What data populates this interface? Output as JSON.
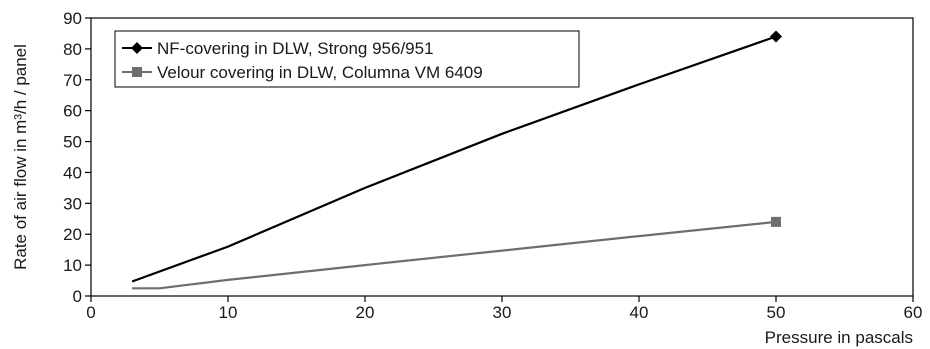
{
  "chart_data": {
    "type": "line",
    "xlabel": "Pressure in pascals",
    "ylabel": "Rate of air flow in m³/h / panel",
    "xlim": [
      0,
      60
    ],
    "ylim": [
      0,
      90
    ],
    "xticks": [
      0,
      10,
      20,
      30,
      40,
      50,
      60
    ],
    "yticks": [
      0,
      10,
      20,
      30,
      40,
      50,
      60,
      70,
      80,
      90
    ],
    "grid": false,
    "legend_position": "top-left",
    "series": [
      {
        "name": "NF-covering in DLW, Strong 956/951",
        "color": "#000000",
        "marker": "diamond",
        "x": [
          3,
          10,
          20,
          30,
          40,
          50
        ],
        "y": [
          4.7,
          16,
          35,
          52.5,
          68.5,
          84
        ]
      },
      {
        "name": "Velour covering in DLW, Columna VM 6409",
        "color": "#6e6e6e",
        "marker": "square",
        "x": [
          3,
          5,
          10,
          20,
          30,
          40,
          50
        ],
        "y": [
          2.5,
          2.5,
          5.2,
          10,
          14.7,
          19.4,
          24
        ]
      }
    ]
  }
}
